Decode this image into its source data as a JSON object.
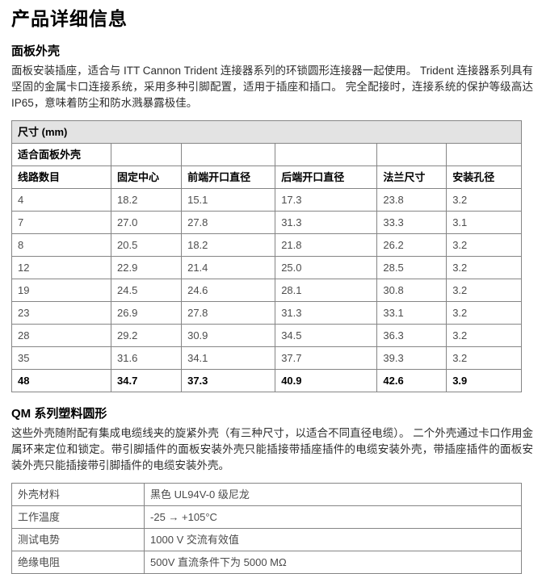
{
  "page": {
    "title": "产品详细信息"
  },
  "panel_section": {
    "heading": "面板外壳",
    "description": "面板安装插座，适合与 ITT Cannon Trident 连接器系列的环锁圆形连接器一起使用。 Trident 连接器系列具有坚固的金属卡口连接系统，采用多种引脚配置，适用于插座和插口。 完全配接时，连接系统的保护等级高达 IP65，意味着防尘和防水溅暴露极佳。"
  },
  "dimensions_table": {
    "title": "尺寸 (mm)",
    "subtitle": "适合面板外壳",
    "columns": [
      "线路数目",
      "固定中心",
      "前端开口直径",
      "后端开口直径",
      "法兰尺寸",
      "安装孔径"
    ],
    "rows": [
      [
        "4",
        "18.2",
        "15.1",
        "17.3",
        "23.8",
        "3.2"
      ],
      [
        "7",
        "27.0",
        "27.8",
        "31.3",
        "33.3",
        "3.1"
      ],
      [
        "8",
        "20.5",
        "18.2",
        "21.8",
        "26.2",
        "3.2"
      ],
      [
        "12",
        "22.9",
        "21.4",
        "25.0",
        "28.5",
        "3.2"
      ],
      [
        "19",
        "24.5",
        "24.6",
        "28.1",
        "30.8",
        "3.2"
      ],
      [
        "23",
        "26.9",
        "27.8",
        "31.3",
        "33.1",
        "3.2"
      ],
      [
        "28",
        "29.2",
        "30.9",
        "34.5",
        "36.3",
        "3.2"
      ],
      [
        "35",
        "31.6",
        "34.1",
        "37.7",
        "39.3",
        "3.2"
      ],
      [
        "48",
        "34.7",
        "37.3",
        "40.9",
        "42.6",
        "3.9"
      ]
    ],
    "last_row_bold": true
  },
  "qm_section": {
    "heading": "QM 系列塑料圆形",
    "description": "这些外壳随附配有集成电缆线夹的旋紧外壳（有三种尺寸，以适合不同直径电缆）。 二个外壳通过卡口作用金属环来定位和锁定。带引脚插件的面板安装外壳只能插接带插座插件的电缆安装外壳，带插座插件的面板安装外壳只能插接带引脚插件的电缆安装外壳。"
  },
  "specs_table": {
    "rows": [
      {
        "label": "外壳材料",
        "value": "黑色 UL94V-0 级尼龙"
      },
      {
        "label": "工作温度",
        "value": "-25 → +105°C"
      },
      {
        "label": "测试电势",
        "value": "1000 V 交流有效值"
      },
      {
        "label": "绝缘电阻",
        "value": "500V 直流条件下为 5000 MΩ"
      }
    ]
  },
  "colors": {
    "table_border": "#858585",
    "table_title_bg": "#e3e3e3",
    "data_text": "#4d4d4d",
    "separator": "#b5b5b5"
  }
}
